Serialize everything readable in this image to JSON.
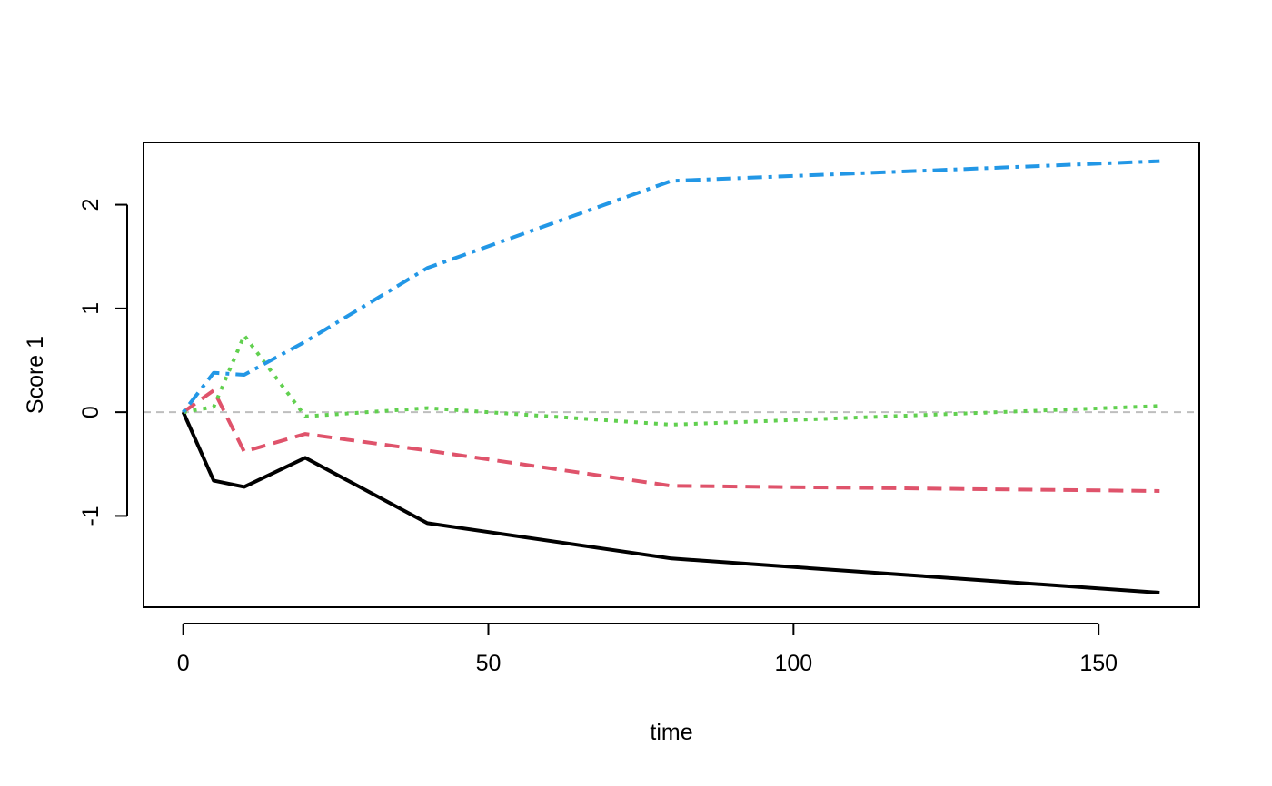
{
  "chart_data": {
    "type": "line",
    "title": "",
    "xlabel": "time",
    "ylabel": "Score 1",
    "xlim": [
      -6.5,
      166.5
    ],
    "ylim": [
      -1.88,
      2.6
    ],
    "xticks": [
      0,
      50,
      100,
      150
    ],
    "yticks": [
      -1,
      0,
      1,
      2
    ],
    "x": [
      0,
      5,
      10,
      20,
      40,
      80,
      160
    ],
    "reference_line": {
      "y": 0,
      "color": "#bebebe",
      "style": "dashed"
    },
    "grid": false,
    "legend": "none",
    "series": [
      {
        "values": [
          0,
          -0.66,
          -0.72,
          -0.44,
          -1.07,
          -1.41,
          -1.74
        ],
        "color": "#000000",
        "style": "solid"
      },
      {
        "values": [
          0,
          0.21,
          -0.38,
          -0.21,
          -0.37,
          -0.71,
          -0.76
        ],
        "color": "#df536b",
        "style": "dashed"
      },
      {
        "values": [
          0,
          0.05,
          0.74,
          -0.04,
          0.04,
          -0.12,
          0.06
        ],
        "color": "#61d04f",
        "style": "dotted"
      },
      {
        "values": [
          0,
          0.38,
          0.36,
          0.68,
          1.39,
          2.23,
          2.42
        ],
        "color": "#2297e6",
        "style": "dotdash"
      }
    ]
  }
}
